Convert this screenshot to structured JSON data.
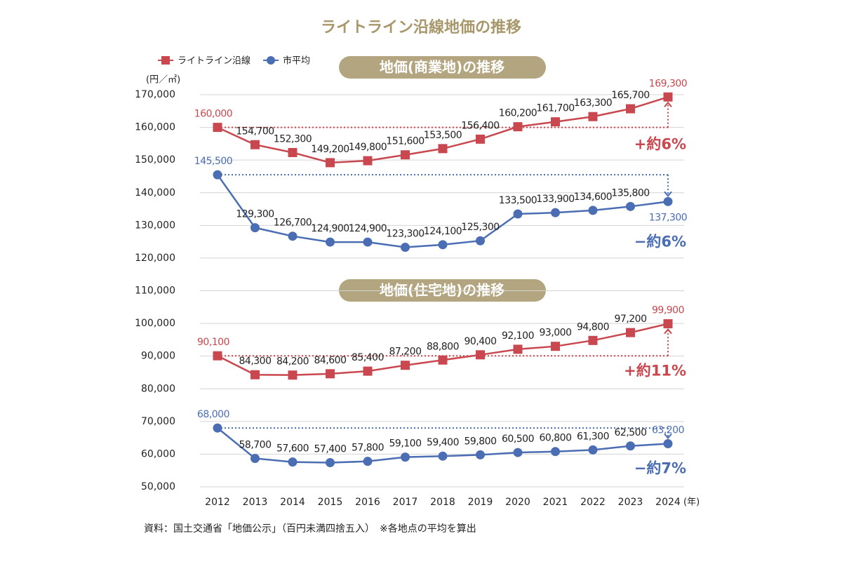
{
  "chart_data": {
    "type": "line",
    "title": "ライトライン沿線地価の推移",
    "y_unit": "(円／㎡)",
    "x_unit": "(年)",
    "source": "資料：国土交通省「地価公示」（百円未満四捨五入）　※各地点の平均を算出",
    "panel_labels": [
      "地価(商業地)の推移",
      "地価(住宅地)の推移"
    ],
    "categories": [
      "2012",
      "2013",
      "2014",
      "2015",
      "2016",
      "2017",
      "2018",
      "2019",
      "2020",
      "2021",
      "2022",
      "2023",
      "2024"
    ],
    "ylim": [
      50000,
      170000
    ],
    "yticks": [
      {
        "value": 50000,
        "label": "50,000"
      },
      {
        "value": 60000,
        "label": "60,000"
      },
      {
        "value": 70000,
        "label": "70,000"
      },
      {
        "value": 80000,
        "label": "80,000"
      },
      {
        "value": 90000,
        "label": "90,000"
      },
      {
        "value": 100000,
        "label": "100,000"
      },
      {
        "value": 110000,
        "label": "110,000"
      },
      {
        "value": 120000,
        "label": "120,000"
      },
      {
        "value": 130000,
        "label": "130,000"
      },
      {
        "value": 140000,
        "label": "140,000"
      },
      {
        "value": 150000,
        "label": "150,000"
      },
      {
        "value": 160000,
        "label": "160,000"
      },
      {
        "value": 170000,
        "label": "170,000"
      }
    ],
    "grid": true,
    "series": [
      {
        "name": "ライトライン沿線",
        "color": "#c9474e",
        "marker": "square",
        "values": [
          160000,
          154700,
          152300,
          149200,
          149800,
          151600,
          153500,
          156400,
          160200,
          161700,
          163300,
          165700,
          169300
        ],
        "value_labels": [
          "160,000",
          "154,700",
          "152,300",
          "149,200",
          "149,800",
          "151,600",
          "153,500",
          "156,400",
          "160,200",
          "161,700",
          "163,300",
          "165,700",
          "169,300"
        ]
      },
      {
        "name": "市平均",
        "color": "#4a6db3",
        "marker": "circle",
        "values": [
          145500,
          129300,
          126700,
          124900,
          124900,
          123300,
          124100,
          125300,
          133500,
          133900,
          134600,
          135800,
          137300
        ],
        "value_labels": [
          "145,500",
          "129,300",
          "126,700",
          "124,900",
          "124,900",
          "123,300",
          "124,100",
          "125,300",
          "133,500",
          "133,900",
          "134,600",
          "135,800",
          "137,300"
        ]
      },
      {
        "name": "ライトライン沿線",
        "color": "#c9474e",
        "marker": "square",
        "values": [
          90100,
          84300,
          84200,
          84600,
          85400,
          87200,
          88800,
          90400,
          92100,
          93000,
          94800,
          97200,
          99900
        ],
        "value_labels": [
          "90,100",
          "84,300",
          "84,200",
          "84,600",
          "85,400",
          "87,200",
          "88,800",
          "90,400",
          "92,100",
          "93,000",
          "94,800",
          "97,200",
          "99,900"
        ]
      },
      {
        "name": "市平均",
        "color": "#4a6db3",
        "marker": "circle",
        "values": [
          68000,
          58700,
          57600,
          57400,
          57800,
          59100,
          59400,
          59800,
          60500,
          60800,
          61300,
          62500,
          63200
        ],
        "value_labels": [
          "68,000",
          "58,700",
          "57,600",
          "57,400",
          "57,800",
          "59,100",
          "59,400",
          "59,800",
          "60,500",
          "60,800",
          "61,300",
          "62,500",
          "63,200"
        ]
      }
    ],
    "annotations": [
      "+約6%",
      "−約6%",
      "+約11%",
      "−約7%"
    ]
  }
}
